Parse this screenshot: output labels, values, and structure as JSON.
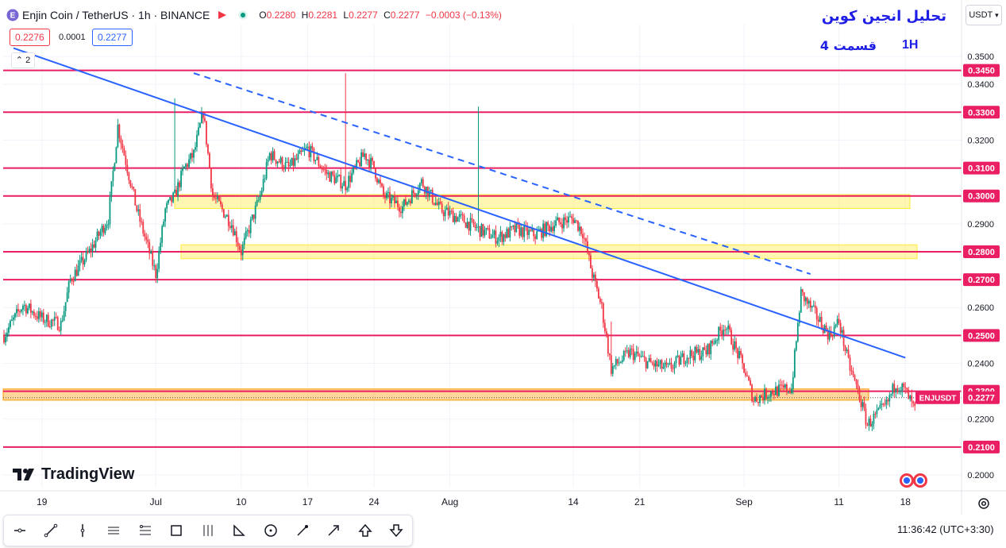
{
  "header": {
    "symbol": "Enjin Coin / TetherUS · 1h · BINANCE",
    "open_label": "O",
    "open": "0.2280",
    "high_label": "H",
    "high": "0.2281",
    "low_label": "L",
    "low": "0.2277",
    "close_label": "C",
    "close": "0.2277",
    "change": "−0.0003 (−0.13%)"
  },
  "quote": {
    "sell": "0.2276",
    "spread": "0.0001",
    "buy": "0.2277"
  },
  "indicators_toggle": "2",
  "currency": "USDT",
  "annotation": {
    "title": "تحلیل انجین کوین",
    "part": "قسمت 4",
    "timeframe": "1H"
  },
  "brand": "TradingView",
  "clock": "11:36:42 (UTC+3:30)",
  "toolbar": [
    "crosshair-tool",
    "trend-line-tool",
    "vertical-line-tool",
    "parallel-channel-tool",
    "fib-retracement-tool",
    "rectangle-tool",
    "pitchfork-tool",
    "triangle-pattern-tool",
    "circle-tool",
    "brush-tool",
    "arrow-tool",
    "arrow-up-tool",
    "arrow-down-tool"
  ],
  "colors": {
    "up": "#089981",
    "down": "#f23645",
    "level": "#e91e63",
    "trend": "#2962ff",
    "zone": "#ffeb3b",
    "zone_orange": "#ff9800",
    "price_tag": "#e91e63"
  },
  "chart_data": {
    "type": "candlestick",
    "symbol_label": "ENJUSDT",
    "last_price": 0.2277,
    "ylim": [
      0.195,
      0.358
    ],
    "y_ticks": [
      0.35,
      0.34,
      0.32,
      0.29,
      0.26,
      0.24,
      0.22,
      0.2
    ],
    "x_ticks": [
      "19",
      "Jul",
      "10",
      "17",
      "24",
      "Aug",
      "14",
      "21",
      "Sep",
      "11",
      "18"
    ],
    "horizontal_levels": [
      0.345,
      0.33,
      0.31,
      0.3,
      0.28,
      0.27,
      0.25,
      0.23,
      0.21
    ],
    "zones": [
      {
        "low": 0.2955,
        "high": 0.3005,
        "color": "yellow"
      },
      {
        "low": 0.2775,
        "high": 0.2825,
        "color": "yellow"
      },
      {
        "low": 0.2268,
        "high": 0.2308,
        "color": "orange"
      }
    ],
    "trendlines": [
      {
        "style": "solid",
        "from": [
          "Jun 16",
          0.353
        ],
        "to": [
          "Sep 18",
          0.242
        ]
      },
      {
        "style": "dashed",
        "from": [
          "Jul 5",
          0.344
        ],
        "to": [
          "Sep 8",
          0.272
        ]
      }
    ],
    "price_path": [
      [
        "Jun 15",
        0.25
      ],
      [
        "Jun 17",
        0.261
      ],
      [
        "Jun 19",
        0.256
      ],
      [
        "Jun 21",
        0.254
      ],
      [
        "Jun 22",
        0.27
      ],
      [
        "Jun 24",
        0.28
      ],
      [
        "Jun 26",
        0.292
      ],
      [
        "Jun 27",
        0.325
      ],
      [
        "Jun 29",
        0.295
      ],
      [
        "Jul 1",
        0.272
      ],
      [
        "Jul 2",
        0.295
      ],
      [
        "Jul 3",
        0.3
      ],
      [
        "Jul 4",
        0.31
      ],
      [
        "Jul 5",
        0.315
      ],
      [
        "Jul 6",
        0.33
      ],
      [
        "Jul 7",
        0.3
      ],
      [
        "Jul 9",
        0.29
      ],
      [
        "Jul 10",
        0.28
      ],
      [
        "Jul 11",
        0.29
      ],
      [
        "Jul 12",
        0.3
      ],
      [
        "Jul 13",
        0.315
      ],
      [
        "Jul 15",
        0.31
      ],
      [
        "Jul 17",
        0.317
      ],
      [
        "Jul 19",
        0.308
      ],
      [
        "Jul 21",
        0.304
      ],
      [
        "Jul 23",
        0.315
      ],
      [
        "Jul 24",
        0.31
      ],
      [
        "Jul 25",
        0.3
      ],
      [
        "Jul 27",
        0.296
      ],
      [
        "Jul 29",
        0.305
      ],
      [
        "Jul 31",
        0.295
      ],
      [
        "Aug 2",
        0.292
      ],
      [
        "Aug 4",
        0.288
      ],
      [
        "Aug 6",
        0.285
      ],
      [
        "Aug 8",
        0.288
      ],
      [
        "Aug 10",
        0.286
      ],
      [
        "Aug 12",
        0.29
      ],
      [
        "Aug 14",
        0.292
      ],
      [
        "Aug 15",
        0.287
      ],
      [
        "Aug 16",
        0.272
      ],
      [
        "Aug 17",
        0.26
      ],
      [
        "Aug 18",
        0.238
      ],
      [
        "Aug 20",
        0.244
      ],
      [
        "Aug 22",
        0.24
      ],
      [
        "Aug 24",
        0.238
      ],
      [
        "Aug 26",
        0.243
      ],
      [
        "Aug 28",
        0.244
      ],
      [
        "Aug 30",
        0.254
      ],
      [
        "Sep 1",
        0.238
      ],
      [
        "Sep 2",
        0.227
      ],
      [
        "Sep 4",
        0.23
      ],
      [
        "Sep 6",
        0.231
      ],
      [
        "Sep 7",
        0.265
      ],
      [
        "Sep 8",
        0.26
      ],
      [
        "Sep 10",
        0.25
      ],
      [
        "Sep 11",
        0.255
      ],
      [
        "Sep 12",
        0.24
      ],
      [
        "Sep 13",
        0.23
      ],
      [
        "Sep 14",
        0.218
      ],
      [
        "Sep 16",
        0.225
      ],
      [
        "Sep 17",
        0.233
      ],
      [
        "Sep 18",
        0.23
      ],
      [
        "Sep 19",
        0.223
      ]
    ]
  }
}
